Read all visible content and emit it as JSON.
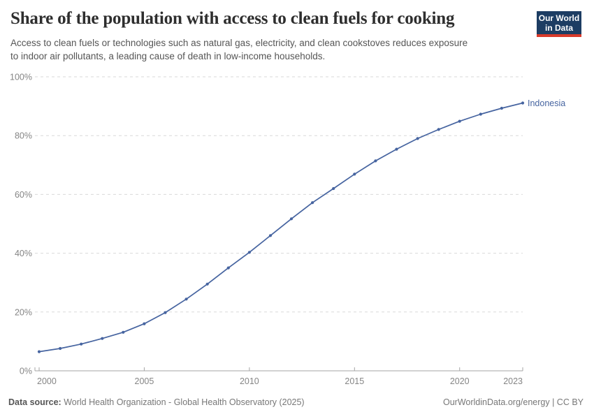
{
  "header": {
    "title": "Share of the population with access to clean fuels for cooking",
    "subtitle_lines": [
      "Access to clean fuels or technologies such as natural gas, electricity, and clean cookstoves reduces exposure",
      "to indoor air pollutants, a leading cause of death in low-income households."
    ],
    "logo": {
      "line1": "Our World",
      "line2": "in Data",
      "bg_color": "#1d3d63",
      "stripe_color": "#d93a2b"
    }
  },
  "chart_data": {
    "type": "line",
    "title": "Share of the population with access to clean fuels for cooking",
    "series": [
      {
        "name": "Indonesia",
        "color": "#4664a0",
        "x": [
          2000,
          2001,
          2002,
          2003,
          2004,
          2005,
          2006,
          2007,
          2008,
          2009,
          2010,
          2011,
          2012,
          2013,
          2014,
          2015,
          2016,
          2017,
          2018,
          2019,
          2020,
          2021,
          2022,
          2023
        ],
        "values": [
          6.5,
          7.6,
          9.1,
          11,
          13.1,
          16,
          19.8,
          24.4,
          29.5,
          35,
          40.3,
          46,
          51.7,
          57.2,
          62,
          66.9,
          71.4,
          75.4,
          79,
          82.1,
          84.9,
          87.3,
          89.3,
          91.1
        ]
      }
    ],
    "x_ticks": [
      2000,
      2005,
      2010,
      2015,
      2020,
      2023
    ],
    "y_ticks": [
      0,
      20,
      40,
      60,
      80,
      100
    ],
    "y_tick_suffix": "%",
    "xlim": [
      2000,
      2023
    ],
    "ylim": [
      0,
      100
    ],
    "grid": "horizontal-dashed",
    "legend": "end-of-line-label",
    "colors": {
      "gridline": "#d9d9d9",
      "axis": "#a5a5a5",
      "tick_label": "#858585"
    }
  },
  "footer": {
    "datasource_label": "Data source:",
    "datasource_value": "World Health Organization - Global Health Observatory (2025)",
    "link": "OurWorldinData.org/energy | CC BY"
  }
}
